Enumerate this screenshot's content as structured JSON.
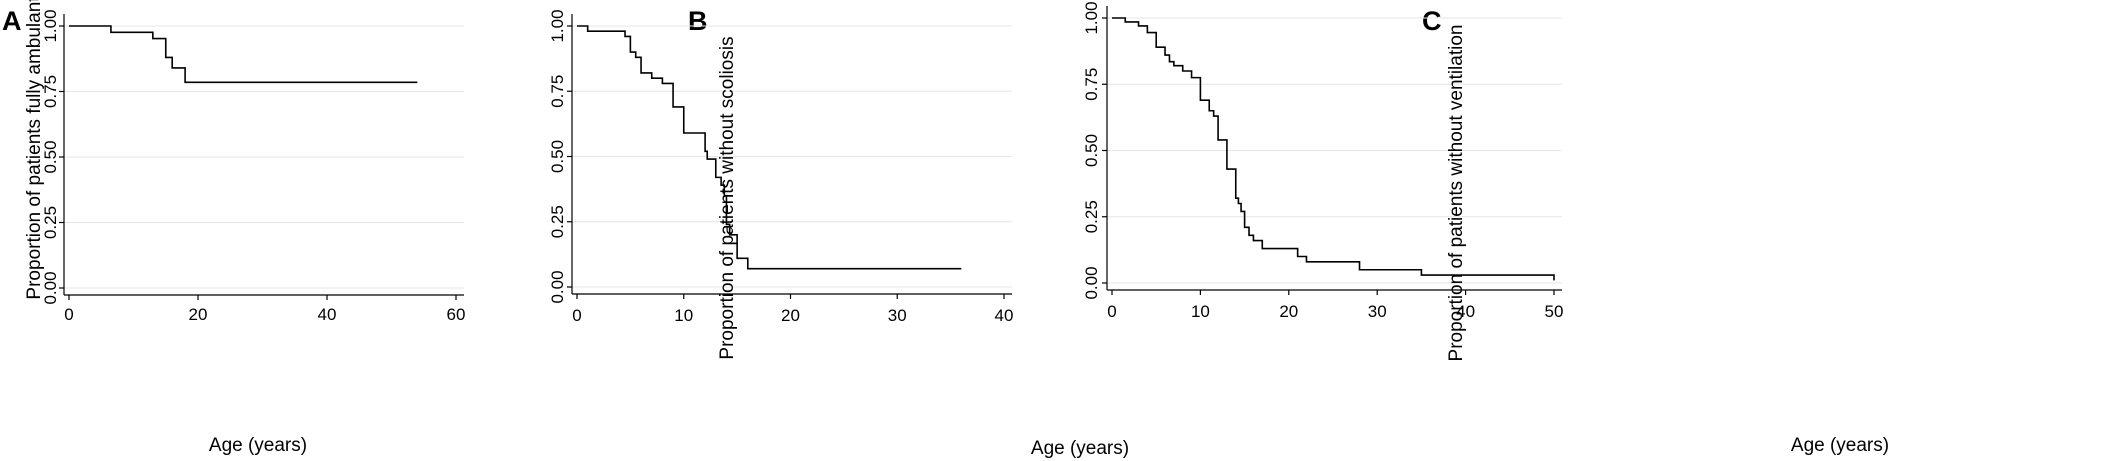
{
  "chart_data": [
    {
      "panel": "A",
      "type": "line",
      "xlabel": "Age (years)",
      "ylabel": "Proportion of patients fully ambulant",
      "xlim": [
        0,
        60
      ],
      "ylim": [
        0,
        1
      ],
      "x_ticks": [
        "0",
        "20",
        "40",
        "60"
      ],
      "y_ticks": [
        "0.00",
        "0.25",
        "0.50",
        "0.75",
        "1.00"
      ],
      "grid": "horizontal",
      "step_function": true,
      "series": [
        {
          "x": [
            0,
            6.5,
            13,
            15,
            16,
            18,
            54
          ],
          "y": [
            1.0,
            0.976,
            0.952,
            0.88,
            0.84,
            0.785,
            0.785
          ]
        }
      ]
    },
    {
      "panel": "B",
      "type": "line",
      "xlabel": "Age (years)",
      "ylabel": "Proportion of patients without scoliosis",
      "xlim": [
        0,
        40
      ],
      "ylim": [
        0,
        1
      ],
      "x_ticks": [
        "0",
        "10",
        "20",
        "30",
        "40"
      ],
      "y_ticks": [
        "0.00",
        "0.25",
        "0.50",
        "0.75",
        "1.00"
      ],
      "grid": "horizontal",
      "step_function": true,
      "series": [
        {
          "x": [
            0,
            1,
            4.5,
            5,
            5.5,
            6,
            7,
            8,
            9,
            10,
            12,
            12.2,
            13,
            13.5,
            13.8,
            14,
            14.3,
            15,
            16,
            36
          ],
          "y": [
            1.0,
            0.98,
            0.96,
            0.9,
            0.88,
            0.82,
            0.8,
            0.78,
            0.69,
            0.59,
            0.52,
            0.49,
            0.42,
            0.39,
            0.35,
            0.24,
            0.2,
            0.11,
            0.07,
            0.07
          ]
        }
      ]
    },
    {
      "panel": "C",
      "type": "line",
      "xlabel": "Age (years)",
      "ylabel": "Proportion of patients without ventilation",
      "xlim": [
        0,
        50
      ],
      "ylim": [
        0,
        1
      ],
      "x_ticks": [
        "0",
        "10",
        "20",
        "30",
        "40",
        "50"
      ],
      "y_ticks": [
        "0.00",
        "0.25",
        "0.50",
        "0.75",
        "1.00"
      ],
      "grid": "horizontal",
      "step_function": true,
      "series": [
        {
          "x": [
            0,
            1.5,
            3,
            4,
            5,
            6,
            6.5,
            7,
            8,
            9,
            10,
            11,
            11.5,
            12,
            13,
            14,
            14.3,
            14.6,
            15,
            15.5,
            16,
            17,
            21,
            22,
            28,
            35,
            50
          ],
          "y": [
            1.0,
            0.985,
            0.97,
            0.945,
            0.89,
            0.86,
            0.835,
            0.82,
            0.8,
            0.775,
            0.69,
            0.65,
            0.63,
            0.54,
            0.43,
            0.32,
            0.3,
            0.27,
            0.21,
            0.18,
            0.16,
            0.13,
            0.1,
            0.08,
            0.05,
            0.03,
            0.01
          ]
        }
      ]
    }
  ]
}
